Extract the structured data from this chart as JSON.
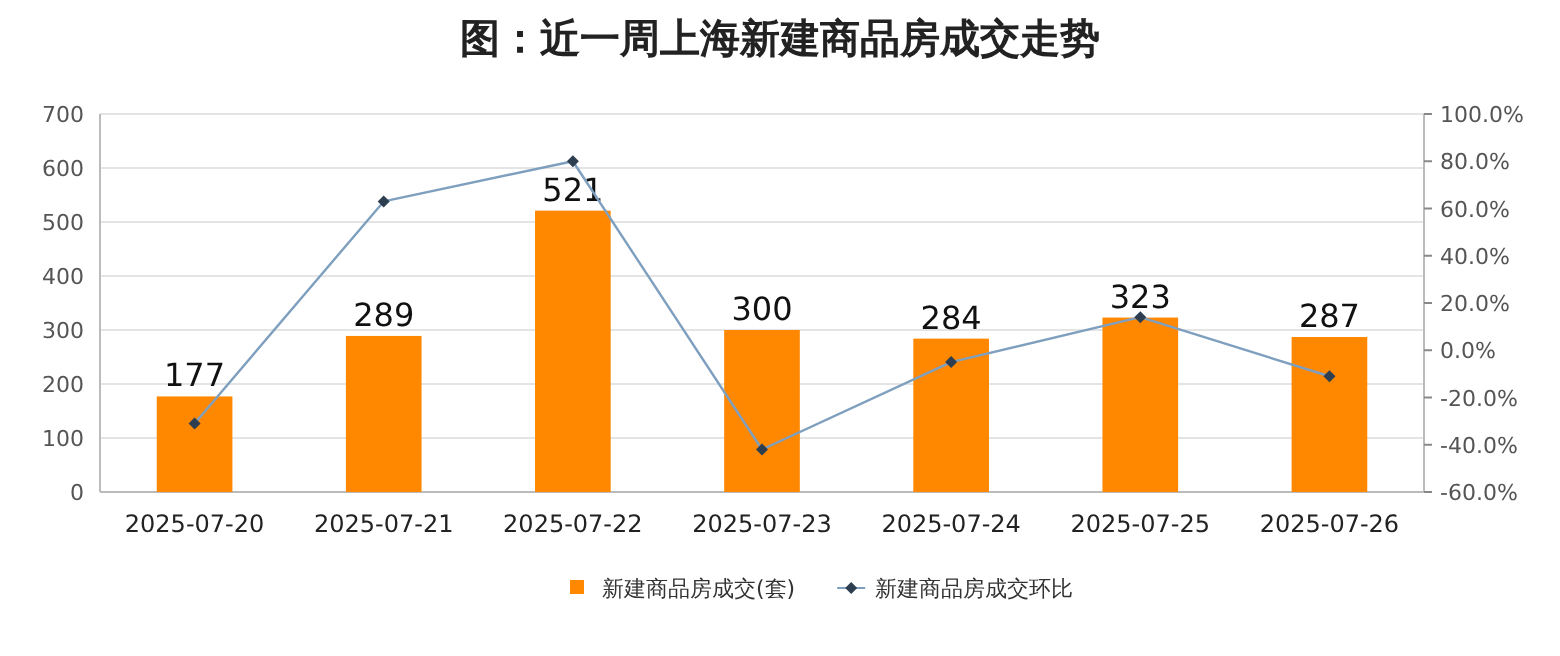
{
  "chart_data": {
    "type": "bar",
    "title": "图：近一周上海新建商品房成交走势",
    "categories": [
      "2025-07-20",
      "2025-07-21",
      "2025-07-22",
      "2025-07-23",
      "2025-07-24",
      "2025-07-25",
      "2025-07-26"
    ],
    "series": [
      {
        "name": "新建商品房成交(套)",
        "color": "#ff8800",
        "values": [
          177,
          289,
          521,
          300,
          284,
          323,
          287
        ],
        "value_labels": [
          "177",
          "289",
          "521",
          "300",
          "284",
          "323",
          "287"
        ]
      },
      {
        "name": "新建商品房成交环比",
        "type": "line",
        "axis": "y2",
        "color": "#7f9fbf",
        "marker": "diamond",
        "values": [
          -31,
          63,
          80,
          -42,
          -5,
          14,
          -11
        ]
      }
    ],
    "ylim": [
      0,
      700
    ],
    "yticks": [
      0,
      100,
      200,
      300,
      400,
      500,
      600,
      700
    ],
    "y2lim": [
      -60,
      100
    ],
    "y2ticks": [
      {
        "value": -60,
        "label": "-60.0%"
      },
      {
        "value": -40,
        "label": "-40.0%"
      },
      {
        "value": -20,
        "label": "-20.0%"
      },
      {
        "value": 0,
        "label": "0.0%"
      },
      {
        "value": 20,
        "label": "20.0%"
      },
      {
        "value": 40,
        "label": "40.0%"
      },
      {
        "value": 60,
        "label": "60.0%"
      },
      {
        "value": 80,
        "label": "80.0%"
      },
      {
        "value": 100,
        "label": "100.0%"
      }
    ],
    "grid": "y",
    "legend": "bottom"
  }
}
